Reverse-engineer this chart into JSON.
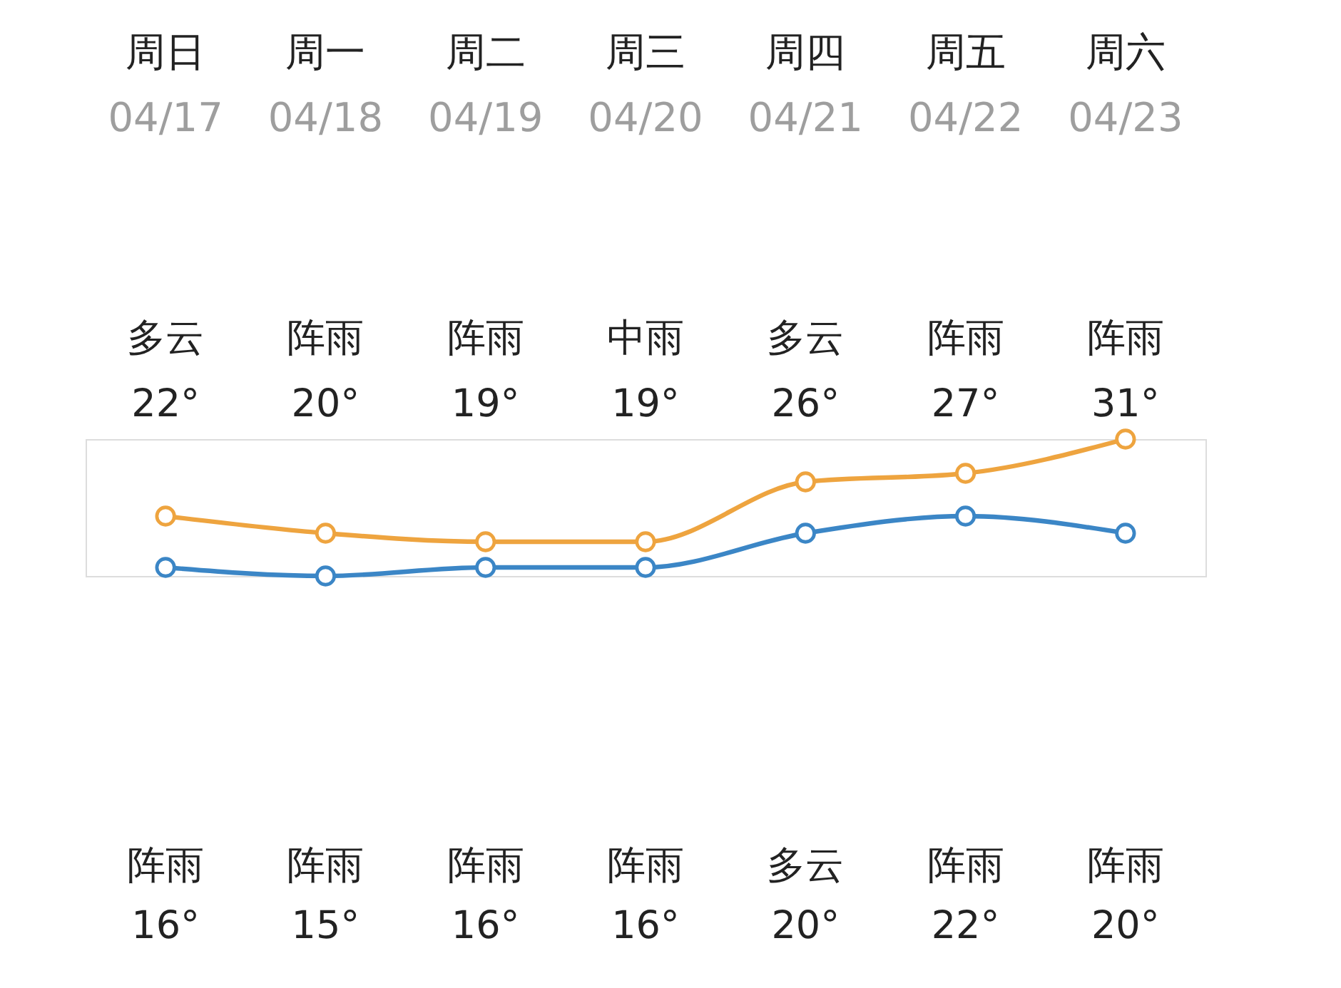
{
  "chart_data": {
    "type": "line",
    "categories": [
      "周日\n04/17",
      "周一\n04/18",
      "周二\n04/19",
      "周三\n04/20",
      "周四\n04/21",
      "周五\n04/22",
      "周六\n04/23"
    ],
    "series": [
      {
        "color": "#eea43f",
        "values": [
          22,
          20,
          19,
          19,
          26,
          27,
          31
        ],
        "value_labels": [
          "22°",
          "20°",
          "19°",
          "19°",
          "26°",
          "27°",
          "31°"
        ]
      },
      {
        "color": "#3b86c6",
        "values": [
          16,
          15,
          16,
          16,
          20,
          22,
          20
        ],
        "value_labels": [
          "16°",
          "15°",
          "16°",
          "16°",
          "20°",
          "22°",
          "20°"
        ]
      }
    ],
    "annotations": [
      "多云",
      "阵雨",
      "阵雨",
      "中雨",
      "多云",
      "阵雨",
      "阵雨",
      "阵雨",
      "阵雨",
      "阵雨",
      "阵雨",
      "多云",
      "阵雨",
      "阵雨"
    ],
    "marker": "circle",
    "tick_labels": "x"
  }
}
